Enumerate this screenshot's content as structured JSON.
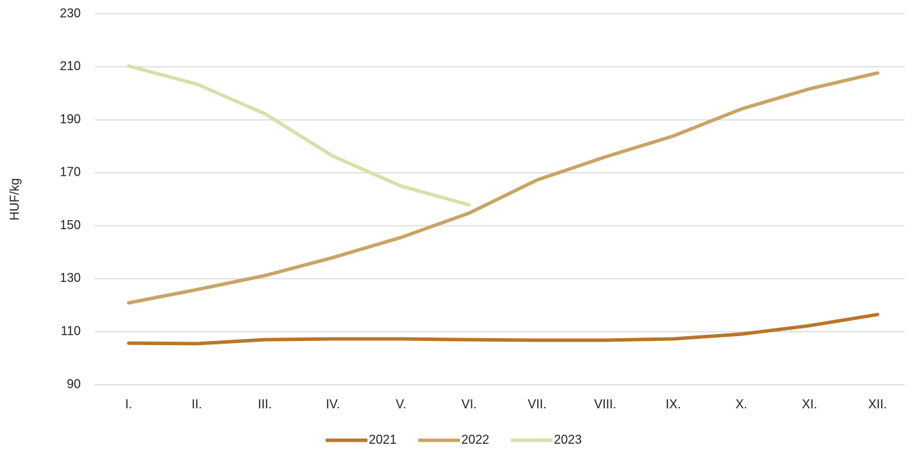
{
  "chart_data": {
    "type": "line",
    "y_label": "HUF/kg",
    "categories": [
      "I.",
      "II.",
      "III.",
      "IV.",
      "V.",
      "VI.",
      "VII.",
      "VIII.",
      "IX.",
      "X.",
      "XI.",
      "XII."
    ],
    "series": [
      {
        "name": "2021",
        "color": "#b8762a",
        "values": [
          105.7,
          105.5,
          107,
          107.3,
          107.3,
          107,
          106.8,
          106.8,
          107.3,
          109.1,
          112.3,
          116.5
        ]
      },
      {
        "name": "2022",
        "color": "#c9a463",
        "values": [
          120.9,
          125.9,
          131.2,
          138,
          145.6,
          154.8,
          167.3,
          176,
          183.9,
          194.1,
          201.7,
          207.7
        ]
      },
      {
        "name": "2023",
        "color": "#d9dfa8",
        "values": [
          210.3,
          203.5,
          192.3,
          176.3,
          165,
          157.9,
          null,
          null,
          null,
          null,
          null,
          null
        ]
      }
    ],
    "ylim": [
      90,
      230
    ],
    "yticks": [
      90,
      110,
      130,
      150,
      170,
      190,
      210,
      230
    ],
    "grid": true,
    "legend": "bottom"
  }
}
